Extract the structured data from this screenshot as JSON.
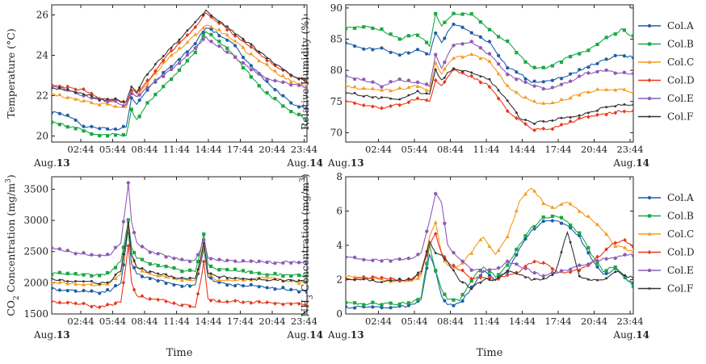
{
  "x_tick_labels": [
    "02:44",
    "05:44",
    "08:44",
    "11:44",
    "14:44",
    "17:44",
    "20:44",
    "23:44"
  ],
  "date_start": {
    "prefix": "Aug.",
    "day": "13"
  },
  "date_end": {
    "prefix": "Aug.",
    "day": "14"
  },
  "xlabel": "Time",
  "legend": [
    {
      "name": "Col.A",
      "color": "#1f5fa8",
      "marker": "circle"
    },
    {
      "name": "Col.B",
      "color": "#1aa845",
      "marker": "square"
    },
    {
      "name": "Col.C",
      "color": "#f59a1c",
      "marker": "triangle"
    },
    {
      "name": "Col.D",
      "color": "#e8381c",
      "marker": "diamond"
    },
    {
      "name": "Col.E",
      "color": "#8e5bb5",
      "marker": "pentagon"
    },
    {
      "name": "Col.F",
      "color": "#333333",
      "marker": "dot"
    }
  ],
  "chart_data": [
    {
      "type": "line",
      "ylabel": "Temperature (°C)",
      "ylim": [
        19.7,
        26.5
      ],
      "yticks": [
        20,
        22,
        24,
        26
      ],
      "x": [
        0,
        1.5,
        3,
        4.5,
        6,
        7,
        7.5,
        8,
        9,
        10.5,
        12,
        13.5,
        14.5,
        15.5,
        17,
        18.5,
        20,
        21.5,
        23,
        24
      ],
      "series": [
        {
          "name": "Col.A",
          "values": [
            21.2,
            21.0,
            20.5,
            20.4,
            20.3,
            20.5,
            21.9,
            21.6,
            22.3,
            23.1,
            23.8,
            24.6,
            25.4,
            25.1,
            24.6,
            23.6,
            22.8,
            22.1,
            21.5,
            21.4
          ]
        },
        {
          "name": "Col.B",
          "values": [
            20.7,
            20.5,
            20.3,
            20.0,
            20.1,
            20.0,
            21.3,
            20.8,
            21.6,
            22.4,
            23.3,
            24.2,
            25.2,
            24.8,
            24.1,
            23.1,
            22.2,
            21.6,
            21.1,
            20.8
          ]
        },
        {
          "name": "Col.C",
          "values": [
            22.1,
            21.9,
            21.7,
            21.6,
            21.5,
            21.4,
            22.2,
            22.0,
            22.6,
            23.6,
            24.3,
            25.0,
            25.5,
            25.3,
            24.8,
            24.1,
            23.6,
            23.0,
            22.6,
            22.5
          ]
        },
        {
          "name": "Col.D",
          "values": [
            22.5,
            22.4,
            22.3,
            21.8,
            21.8,
            21.6,
            22.3,
            22.1,
            22.7,
            23.8,
            24.6,
            25.4,
            26.1,
            25.7,
            25.1,
            24.5,
            23.9,
            23.3,
            22.9,
            22.8
          ]
        },
        {
          "name": "Col.E",
          "values": [
            22.5,
            22.3,
            22.0,
            21.8,
            21.7,
            21.5,
            22.1,
            21.9,
            22.4,
            23.0,
            23.6,
            24.4,
            24.9,
            24.5,
            24.0,
            23.4,
            22.9,
            22.7,
            22.5,
            22.4
          ]
        },
        {
          "name": "Col.F",
          "values": [
            22.4,
            22.3,
            22.1,
            21.8,
            21.8,
            21.7,
            22.4,
            22.2,
            23.1,
            24.0,
            24.8,
            25.6,
            26.2,
            25.8,
            25.2,
            24.6,
            24.0,
            23.4,
            22.9,
            22.7
          ]
        }
      ]
    },
    {
      "type": "line",
      "ylabel": "Relative Humidity (%)",
      "ylim": [
        68.5,
        90.5
      ],
      "yticks": [
        70,
        75,
        80,
        85,
        90
      ],
      "x": [
        0,
        1.5,
        3,
        4.5,
        6,
        7,
        7.5,
        8,
        9,
        10.5,
        12,
        13.5,
        14.5,
        15.5,
        17,
        18.5,
        20,
        21.5,
        23,
        24
      ],
      "series": [
        {
          "name": "Col.A",
          "values": [
            84.2,
            83.6,
            83.4,
            82.6,
            83.2,
            82.5,
            86.0,
            84.5,
            87.5,
            86.0,
            84.5,
            80.5,
            79.5,
            78.0,
            78.5,
            79.0,
            80.5,
            81.5,
            82.5,
            82.0
          ]
        },
        {
          "name": "Col.B",
          "values": [
            86.8,
            87.0,
            86.5,
            85.0,
            85.8,
            84.0,
            89.0,
            87.0,
            89.0,
            89.0,
            86.5,
            84.5,
            82.5,
            80.5,
            80.5,
            82.0,
            83.0,
            85.0,
            86.5,
            85.5
          ]
        },
        {
          "name": "Col.C",
          "values": [
            77.5,
            77.0,
            76.8,
            77.0,
            77.5,
            76.5,
            81.0,
            79.5,
            82.0,
            82.5,
            81.5,
            77.5,
            76.0,
            75.0,
            74.5,
            75.5,
            76.5,
            77.0,
            77.0,
            76.5
          ]
        },
        {
          "name": "Col.D",
          "values": [
            75.0,
            74.5,
            74.0,
            74.5,
            75.5,
            75.0,
            78.5,
            77.5,
            80.0,
            79.0,
            77.5,
            73.5,
            72.0,
            70.5,
            70.5,
            71.5,
            72.5,
            73.0,
            73.5,
            73.5
          ]
        },
        {
          "name": "Col.E",
          "values": [
            79.0,
            78.5,
            77.5,
            78.5,
            78.0,
            77.5,
            82.5,
            80.5,
            84.0,
            84.5,
            82.5,
            79.5,
            78.5,
            77.5,
            77.0,
            78.0,
            79.5,
            80.0,
            79.5,
            79.5
          ]
        },
        {
          "name": "Col.F",
          "values": [
            76.5,
            76.0,
            75.5,
            75.5,
            76.5,
            76.0,
            80.0,
            78.5,
            80.5,
            79.5,
            78.5,
            75.0,
            72.5,
            71.5,
            72.0,
            72.5,
            73.0,
            74.0,
            74.5,
            74.5
          ]
        }
      ]
    },
    {
      "type": "line",
      "ylabel_parts": [
        "CO",
        "2",
        " Concentration (mg/m",
        "3",
        ")"
      ],
      "ylim": [
        1500,
        3700
      ],
      "yticks": [
        1500,
        2000,
        2500,
        3000,
        3500
      ],
      "x": [
        0,
        1.5,
        3,
        4.5,
        5.5,
        6.5,
        7,
        7.2,
        7.5,
        8,
        9,
        10.5,
        12,
        13.5,
        14,
        14.3,
        14.7,
        15.5,
        17,
        18.5,
        20,
        21.5,
        23,
        24
      ],
      "series": [
        {
          "name": "Col.A",
          "values": [
            1900,
            1880,
            1870,
            1850,
            1880,
            2000,
            2600,
            2850,
            2300,
            2150,
            2080,
            2020,
            1960,
            1960,
            2300,
            2550,
            2100,
            2000,
            1970,
            1960,
            1930,
            1910,
            1880,
            1850
          ]
        },
        {
          "name": "Col.B",
          "values": [
            2150,
            2140,
            2130,
            2120,
            2170,
            2350,
            2800,
            3000,
            2550,
            2400,
            2330,
            2260,
            2200,
            2180,
            2500,
            2780,
            2300,
            2230,
            2200,
            2170,
            2140,
            2130,
            2120,
            2110
          ]
        },
        {
          "name": "Col.C",
          "values": [
            2000,
            2000,
            1980,
            1960,
            2000,
            2150,
            2700,
            2900,
            2450,
            2250,
            2150,
            2100,
            2050,
            2050,
            2350,
            2600,
            2150,
            2050,
            2030,
            2050,
            2080,
            2050,
            2010,
            2000
          ]
        },
        {
          "name": "Col.D",
          "values": [
            1700,
            1680,
            1650,
            1620,
            1640,
            1700,
            2300,
            2600,
            2000,
            1800,
            1750,
            1720,
            1650,
            1620,
            2000,
            2350,
            1750,
            1700,
            1700,
            1700,
            1680,
            1670,
            1660,
            1650
          ]
        },
        {
          "name": "Col.E",
          "values": [
            2550,
            2500,
            2470,
            2430,
            2460,
            2650,
            3300,
            3600,
            3000,
            2650,
            2520,
            2440,
            2380,
            2350,
            2550,
            2700,
            2400,
            2360,
            2340,
            2340,
            2330,
            2330,
            2340,
            2330
          ]
        },
        {
          "name": "Col.F",
          "values": [
            2050,
            2030,
            2020,
            2000,
            2020,
            2200,
            2700,
            2950,
            2450,
            2250,
            2180,
            2130,
            2080,
            2060,
            2400,
            2650,
            2150,
            2100,
            2080,
            2060,
            2050,
            2040,
            2030,
            2020
          ]
        }
      ]
    },
    {
      "type": "line",
      "ylabel_parts": [
        "NH",
        "3",
        " Concentration (mg/m",
        "3",
        ")"
      ],
      "ylim": [
        0,
        8
      ],
      "yticks": [
        0,
        2,
        4,
        6,
        8
      ],
      "x": [
        0,
        1.5,
        3,
        4.5,
        5.5,
        6.3,
        7,
        7.5,
        8,
        8.5,
        9.5,
        10.5,
        11.5,
        12.5,
        13.5,
        14.5,
        15.5,
        16.5,
        17.5,
        18.5,
        19.5,
        20.5,
        21.5,
        22.5,
        23.3,
        24
      ],
      "series": [
        {
          "name": "Col.A",
          "values": [
            0.4,
            0.4,
            0.4,
            0.4,
            0.5,
            0.8,
            3.5,
            2.5,
            1.0,
            0.5,
            0.6,
            1.5,
            2.5,
            2.0,
            2.5,
            3.8,
            4.8,
            5.4,
            5.5,
            5.2,
            4.5,
            3.2,
            2.3,
            2.6,
            2.1,
            1.8
          ]
        },
        {
          "name": "Col.B",
          "values": [
            0.6,
            0.6,
            0.6,
            0.6,
            0.7,
            1.0,
            4.0,
            2.5,
            1.5,
            0.8,
            0.8,
            2.0,
            2.8,
            2.2,
            2.8,
            4.0,
            5.0,
            5.6,
            5.7,
            5.4,
            4.7,
            3.5,
            2.5,
            2.8,
            2.2,
            1.6
          ]
        },
        {
          "name": "Col.C",
          "values": [
            2.2,
            2.1,
            2.0,
            1.9,
            1.9,
            2.2,
            4.5,
            5.4,
            3.5,
            2.8,
            2.8,
            3.6,
            4.5,
            3.5,
            4.5,
            6.5,
            7.4,
            6.5,
            6.2,
            6.5,
            6.0,
            5.5,
            4.8,
            4.0,
            3.8,
            3.6
          ]
        },
        {
          "name": "Col.D",
          "values": [
            2.0,
            2.1,
            2.1,
            2.0,
            2.0,
            2.4,
            4.0,
            4.7,
            3.5,
            3.0,
            2.6,
            2.1,
            2.1,
            2.0,
            2.3,
            2.5,
            3.0,
            3.0,
            2.5,
            2.4,
            2.6,
            3.0,
            3.6,
            4.2,
            4.3,
            3.9
          ]
        },
        {
          "name": "Col.E",
          "values": [
            3.3,
            3.2,
            3.1,
            3.2,
            3.3,
            3.5,
            5.5,
            7.0,
            6.5,
            4.0,
            3.2,
            2.6,
            2.5,
            2.6,
            3.0,
            2.8,
            2.5,
            2.2,
            2.4,
            2.6,
            2.8,
            3.0,
            3.2,
            3.3,
            3.5,
            3.4
          ]
        },
        {
          "name": "Col.F",
          "values": [
            2.0,
            2.0,
            1.9,
            2.0,
            2.0,
            2.5,
            4.2,
            3.5,
            3.4,
            3.0,
            2.0,
            1.5,
            2.0,
            2.0,
            2.5,
            2.3,
            2.0,
            2.0,
            2.4,
            4.8,
            2.2,
            2.0,
            2.0,
            2.5,
            2.2,
            2.1
          ]
        }
      ]
    }
  ]
}
